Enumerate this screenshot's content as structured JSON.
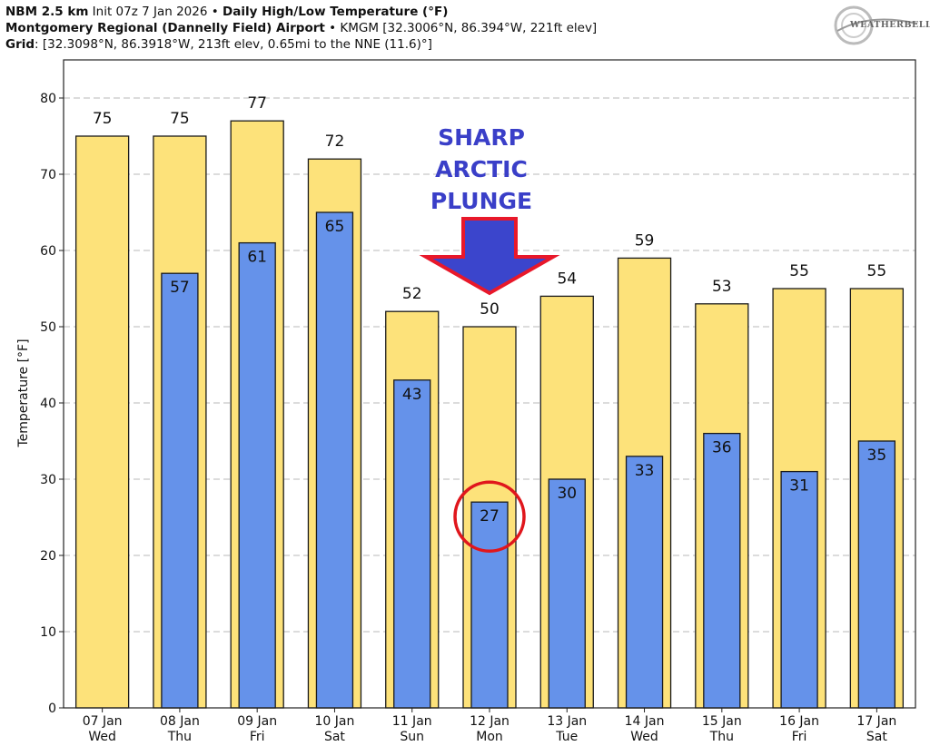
{
  "header": {
    "line1_model": "NBM 2.5 km",
    "line1_init": " Init 07z 7 Jan 2026 • ",
    "line1_product": "Daily High/Low Temperature (°F)",
    "line2_station": "Montgomery Regional (Dannelly Field) Airport",
    "line2_details": " • KMGM [32.3006°N, 86.394°W, 221ft elev]",
    "line3_label": "Grid",
    "line3_details": ": [32.3098°N, 86.3918°W, 213ft elev, 0.65mi to the NNE (11.6)°]"
  },
  "logo": {
    "text": "WEATHERBELL",
    "icon": "weatherbell-logo-icon"
  },
  "annotation": {
    "lines": [
      "SHARP",
      "ARCTIC",
      "PLUNGE"
    ],
    "arrow_icon": "down-arrow-icon",
    "circle_target": "12 Jan low",
    "text_color": "#3a3fc8",
    "arrow_fill": "#3b45cc",
    "arrow_outline": "#e8182a",
    "circle_color": "#e0161c"
  },
  "chart_data": {
    "type": "bar",
    "categories": [
      "07 Jan\nWed",
      "08 Jan\nThu",
      "09 Jan\nFri",
      "10 Jan\nSat",
      "11 Jan\nSun",
      "12 Jan\nMon",
      "13 Jan\nTue",
      "14 Jan\nWed",
      "15 Jan\nThu",
      "16 Jan\nFri",
      "17 Jan\nSat"
    ],
    "series": [
      {
        "values": [
          75,
          75,
          77,
          72,
          52,
          50,
          54,
          59,
          53,
          55,
          55
        ],
        "labels": [
          "75",
          "75",
          "77",
          "72",
          "52",
          "50",
          "54",
          "59",
          "53",
          "55",
          "55"
        ],
        "color": "#fde27a"
      },
      {
        "values": [
          null,
          57,
          61,
          65,
          43,
          27,
          30,
          33,
          36,
          31,
          35
        ],
        "labels": [
          "",
          "57",
          "61",
          "65",
          "43",
          "27",
          "30",
          "33",
          "36",
          "31",
          "35"
        ],
        "color": "#6592ea"
      }
    ],
    "ylabel": "Temperature [°F]",
    "xlabel": "",
    "ylim": [
      0,
      85
    ],
    "yticks": [
      0,
      10,
      20,
      30,
      40,
      50,
      60,
      70,
      80
    ],
    "grid": "horizontal dashed"
  }
}
